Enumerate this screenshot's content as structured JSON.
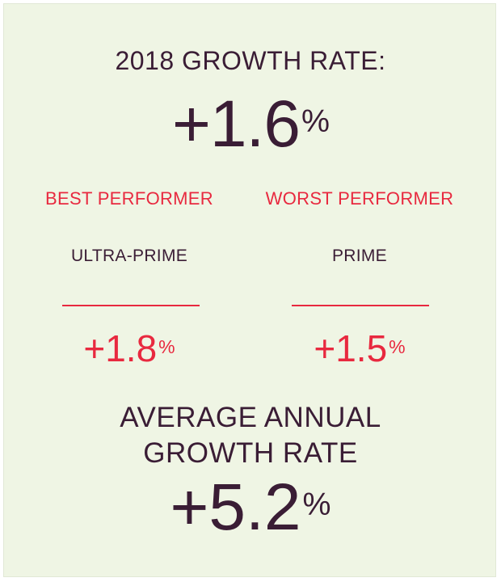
{
  "headline": "2018 GROWTH RATE:",
  "growth_rate": {
    "value": "+1.6",
    "unit": "%"
  },
  "best": {
    "label": "BEST PERFORMER",
    "name": "ULTRA-PRIME",
    "value": "+1.8",
    "unit": "%"
  },
  "worst": {
    "label": "WORST PERFORMER",
    "name": "PRIME",
    "value": "+1.5",
    "unit": "%"
  },
  "average": {
    "label_line1": "AVERAGE ANNUAL",
    "label_line2": "GROWTH RATE",
    "value": "+5.2",
    "unit": "%"
  },
  "colors": {
    "background": "#eff5e4",
    "text": "#3a1d35",
    "accent": "#e8293f"
  }
}
